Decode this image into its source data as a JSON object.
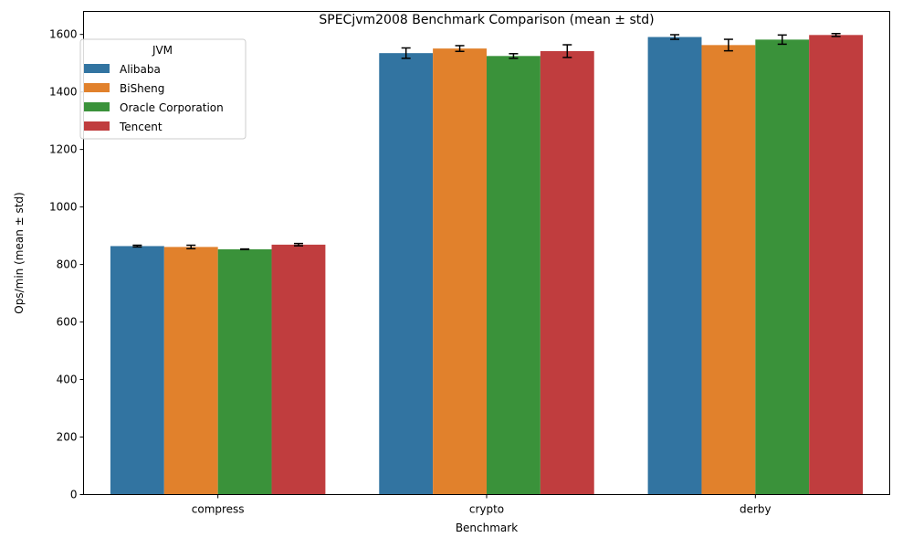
{
  "chart_data": {
    "type": "bar",
    "title": "SPECjvm2008 Benchmark Comparison (mean ± std)",
    "xlabel": "Benchmark",
    "ylabel": "Ops/min (mean ± std)",
    "ylim": [
      0,
      1680
    ],
    "yticks": [
      0,
      200,
      400,
      600,
      800,
      1000,
      1200,
      1400,
      1600
    ],
    "categories": [
      "compress",
      "crypto",
      "derby"
    ],
    "legend": {
      "title": "JVM",
      "placement": "top-left"
    },
    "grid": false,
    "series": [
      {
        "name": "Alibaba",
        "color": "#3274a1",
        "values": [
          864,
          1535,
          1591
        ],
        "errors": [
          3,
          18,
          8
        ]
      },
      {
        "name": "BiSheng",
        "color": "#e1812c",
        "values": [
          861,
          1551,
          1563
        ],
        "errors": [
          6,
          10,
          20
        ]
      },
      {
        "name": "Oracle Corporation",
        "color": "#3a923a",
        "values": [
          853,
          1525,
          1582
        ],
        "errors": [
          1,
          8,
          16
        ]
      },
      {
        "name": "Tencent",
        "color": "#c03d3e",
        "values": [
          869,
          1542,
          1598
        ],
        "errors": [
          4,
          22,
          5
        ]
      }
    ]
  }
}
